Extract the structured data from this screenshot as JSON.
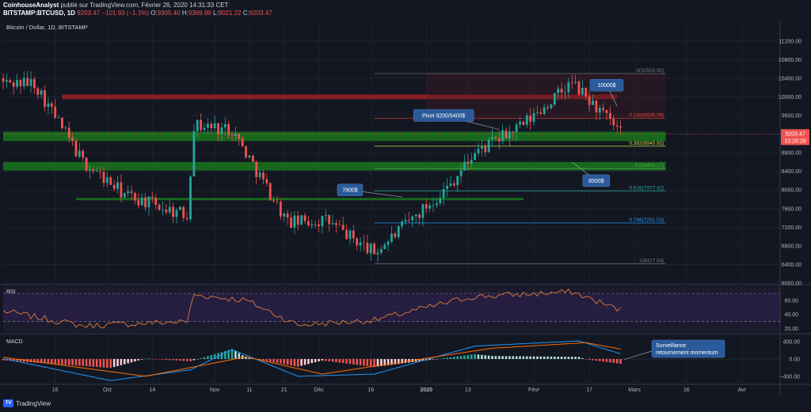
{
  "header": {
    "author": "CoinhouseAnalyst",
    "published": "publié sur TradingView.com, Février 26, 2020 14:31:33 CET",
    "symbol": "BITSTAMP:BTCUSD, 1D",
    "last": "9203.47",
    "change": "−101.93 (−1.1%)",
    "o_label": "O:",
    "o_value": "9305.40",
    "h_label": "H:",
    "h_value": "9369.99",
    "l_label": "L:",
    "l_value": "9021.22",
    "c_label": "C:",
    "c_value": "9203.47"
  },
  "pane_title": "Bitcoin / Dollar, 1D, BITSTAMP",
  "footer": {
    "brand": "TradingView",
    "logo_text": "TV"
  },
  "colors": {
    "background": "#131722",
    "up": "#26a69a",
    "down": "#ef5350",
    "green_zone": "#1b8a1b",
    "red_zone": "#b22222",
    "annotation": "#2b5a9a",
    "rsi_line": "#e07b39",
    "macd_line": "#2196f3",
    "signal_line": "#ff6d00"
  },
  "chart_data": [
    {
      "type": "candlestick",
      "title": "Bitcoin / Dollar, 1D, BITSTAMP",
      "ylim": [
        6000,
        11400
      ],
      "y_ticks": [
        "11200.00",
        "10800.00",
        "10400.00",
        "10000.00",
        "9600.00",
        "9200.00",
        "8800.00",
        "8400.00",
        "8000.00",
        "7600.00",
        "7200.00",
        "6800.00",
        "6400.00",
        "6000.00"
      ],
      "x_ticks": [
        "16",
        "Oct",
        "14",
        "Nov",
        "11",
        "21",
        "Déc",
        "16",
        "2020",
        "13",
        "Févr",
        "17",
        "Mars",
        "16",
        "Avr"
      ],
      "current_price": "9203.47",
      "countdown": "10:28:28",
      "anchors": [
        {
          "date": "2019-09-10",
          "price": 10300
        },
        {
          "date": "2019-09-24",
          "price": 8600
        },
        {
          "date": "2019-10-06",
          "price": 7900
        },
        {
          "date": "2019-10-24",
          "price": 7450
        },
        {
          "date": "2019-10-26",
          "price": 9400
        },
        {
          "date": "2019-11-06",
          "price": 9300
        },
        {
          "date": "2019-11-22",
          "price": 7300
        },
        {
          "date": "2019-12-03",
          "price": 7350
        },
        {
          "date": "2019-12-17",
          "price": 6650
        },
        {
          "date": "2020-01-07",
          "price": 8050
        },
        {
          "date": "2020-01-15",
          "price": 8800
        },
        {
          "date": "2020-01-29",
          "price": 9400
        },
        {
          "date": "2020-02-12",
          "price": 10300
        },
        {
          "date": "2020-02-25",
          "price": 9300
        },
        {
          "date": "2020-02-26",
          "price": 9203.47
        }
      ],
      "fib_levels": [
        {
          "label": "0(10500.50)",
          "price": 10500.5
        },
        {
          "label": "0.236(9536.59)",
          "price": 9536.59
        },
        {
          "label": "0.382(8940.92)",
          "price": 8940.92
        },
        {
          "label": "0.5(8459.17)",
          "price": 8459.17
        },
        {
          "label": "0.618(7977.42)",
          "price": 7977.42
        },
        {
          "label": "0.786(7291.53)",
          "price": 7291.53
        },
        {
          "label": "1(6417.84)",
          "price": 6417.84
        }
      ],
      "zones": [
        {
          "kind": "resistance",
          "low": 9950,
          "high": 10050,
          "from": "2019-09-18",
          "to": "2020-02-25"
        },
        {
          "kind": "support",
          "low": 9050,
          "high": 9250,
          "from": "2019-09-01",
          "to": "2020-03-10"
        },
        {
          "kind": "support",
          "low": 8420,
          "high": 8600,
          "from": "2019-09-01",
          "to": "2020-03-10"
        },
        {
          "kind": "support",
          "low": 7780,
          "high": 7830,
          "from": "2019-09-22",
          "to": "2020-01-29"
        }
      ],
      "annotations": [
        {
          "text": "10000$",
          "date": "2020-02-22",
          "price": 10250
        },
        {
          "text": "Pivot 9200/9400$",
          "date": "2020-01-06",
          "price": 9600
        },
        {
          "text": "8500$",
          "date": "2020-02-19",
          "price": 8200
        },
        {
          "text": "7800$",
          "date": "2019-12-10",
          "price": 8000
        }
      ]
    },
    {
      "type": "line",
      "title": "RSI",
      "ylim": [
        15,
        80
      ],
      "y_ticks": [
        "60.00",
        "40.00",
        "20.00"
      ],
      "bands": [
        30,
        70
      ],
      "anchors": [
        {
          "date": "2019-09-01",
          "value": 45
        },
        {
          "date": "2019-09-24",
          "value": 24
        },
        {
          "date": "2019-10-24",
          "value": 30
        },
        {
          "date": "2019-10-26",
          "value": 68
        },
        {
          "date": "2019-11-10",
          "value": 60
        },
        {
          "date": "2019-11-25",
          "value": 25
        },
        {
          "date": "2019-12-17",
          "value": 32
        },
        {
          "date": "2020-01-14",
          "value": 65
        },
        {
          "date": "2020-02-12",
          "value": 72
        },
        {
          "date": "2020-02-26",
          "value": 46
        }
      ]
    },
    {
      "type": "histogram+line",
      "title": "MACD",
      "ylim": [
        -550,
        550
      ],
      "y_ticks": [
        "400.00",
        "0.00",
        "−400.00"
      ],
      "macd_anchors": [
        {
          "date": "2019-09-01",
          "value": 10
        },
        {
          "date": "2019-10-02",
          "value": -500
        },
        {
          "date": "2019-10-25",
          "value": -250
        },
        {
          "date": "2019-11-06",
          "value": 220
        },
        {
          "date": "2019-11-25",
          "value": -400
        },
        {
          "date": "2019-12-17",
          "value": -350
        },
        {
          "date": "2020-01-15",
          "value": 300
        },
        {
          "date": "2020-02-14",
          "value": 420
        },
        {
          "date": "2020-02-26",
          "value": 120
        }
      ],
      "signal_anchors": [
        {
          "date": "2019-09-01",
          "value": 40
        },
        {
          "date": "2019-10-12",
          "value": -400
        },
        {
          "date": "2019-11-10",
          "value": 50
        },
        {
          "date": "2019-12-02",
          "value": -350
        },
        {
          "date": "2020-01-20",
          "value": 250
        },
        {
          "date": "2020-02-16",
          "value": 380
        },
        {
          "date": "2020-02-26",
          "value": 230
        }
      ]
    }
  ],
  "callout": {
    "line1": "Surveillance",
    "line2": "retournement momentum"
  }
}
